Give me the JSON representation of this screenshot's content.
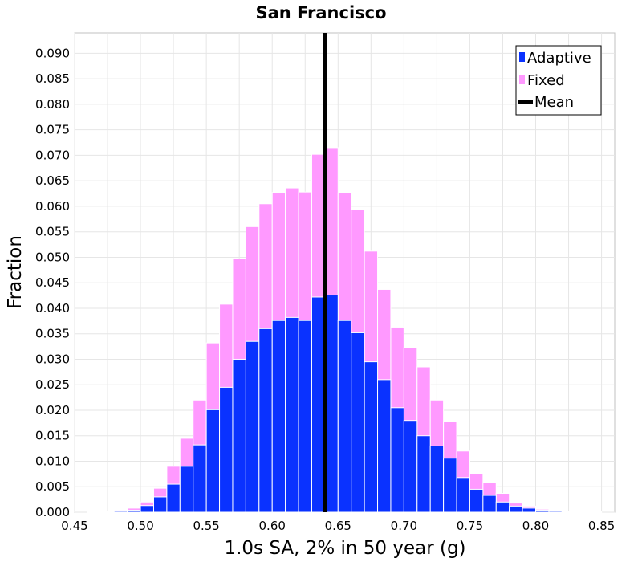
{
  "chart_data": {
    "type": "bar",
    "title": "San Francisco",
    "xlabel": "1.0s SA, 2% in 50 year (g)",
    "ylabel": "Fraction",
    "xlim": [
      0.45,
      0.86
    ],
    "ylim": [
      0,
      0.094
    ],
    "bin_width": 0.01,
    "bin_starts": [
      0.45,
      0.46,
      0.47,
      0.48,
      0.49,
      0.5,
      0.51,
      0.52,
      0.53,
      0.54,
      0.55,
      0.56,
      0.57,
      0.58,
      0.59,
      0.6,
      0.61,
      0.62,
      0.63,
      0.64,
      0.65,
      0.66,
      0.67,
      0.68,
      0.69,
      0.7,
      0.71,
      0.72,
      0.73,
      0.74,
      0.75,
      0.76,
      0.77,
      0.78,
      0.79,
      0.8,
      0.81,
      0.82,
      0.83,
      0.84
    ],
    "x_ticks": [
      "0.45",
      "0.50",
      "0.55",
      "0.60",
      "0.65",
      "0.70",
      "0.75",
      "0.80",
      "0.85"
    ],
    "y_ticks": [
      "0.000",
      "0.005",
      "0.010",
      "0.015",
      "0.020",
      "0.025",
      "0.030",
      "0.035",
      "0.040",
      "0.045",
      "0.050",
      "0.055",
      "0.060",
      "0.065",
      "0.070",
      "0.075",
      "0.080",
      "0.085",
      "0.090"
    ],
    "series": [
      {
        "name": "Fixed",
        "color": "#ff99ff",
        "values": [
          0.0,
          0.0001,
          0.0002,
          0.0004,
          0.0008,
          0.002,
          0.0047,
          0.009,
          0.0145,
          0.022,
          0.0332,
          0.0408,
          0.0497,
          0.056,
          0.0605,
          0.0627,
          0.0636,
          0.0628,
          0.0702,
          0.0715,
          0.0626,
          0.0593,
          0.0512,
          0.0437,
          0.0363,
          0.0323,
          0.0285,
          0.022,
          0.0178,
          0.012,
          0.0075,
          0.0058,
          0.0037,
          0.0018,
          0.0012,
          0.0006,
          0.0003,
          0.0002,
          0.0002,
          0.0001
        ]
      },
      {
        "name": "Adaptive",
        "color": "#0a32ff",
        "values": [
          0.0,
          0.0,
          0.0001,
          0.0002,
          0.0004,
          0.0013,
          0.003,
          0.0055,
          0.009,
          0.0132,
          0.0201,
          0.0245,
          0.03,
          0.0335,
          0.036,
          0.0376,
          0.0382,
          0.0376,
          0.0422,
          0.0426,
          0.0376,
          0.0352,
          0.0295,
          0.026,
          0.0205,
          0.018,
          0.015,
          0.013,
          0.0106,
          0.0068,
          0.0045,
          0.0033,
          0.002,
          0.0012,
          0.0008,
          0.0004,
          0.0002,
          0.0001,
          0.0001,
          0.0
        ]
      }
    ],
    "mean": {
      "name": "Mean",
      "x": 0.64,
      "color": "#000000"
    },
    "grid": true,
    "legend": {
      "position": "top-right",
      "entries": [
        "Adaptive",
        "Fixed",
        "Mean"
      ]
    }
  }
}
